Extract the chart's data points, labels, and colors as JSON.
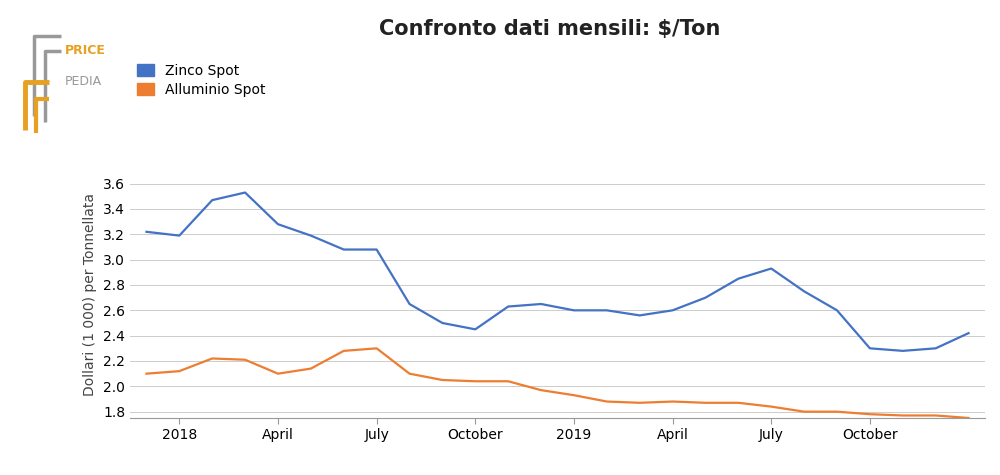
{
  "title": "Confronto dati mensili: $/Ton",
  "ylabel": "Dollari (1 000) per Tonnellata",
  "zinc_color": "#4472C4",
  "aluminium_color": "#ED7D31",
  "legend_labels": [
    "Zinco Spot",
    "Alluminio Spot"
  ],
  "ylim": [
    1.75,
    3.7
  ],
  "yticks": [
    1.8,
    2.0,
    2.2,
    2.4,
    2.6,
    2.8,
    3.0,
    3.2,
    3.4,
    3.6
  ],
  "zinc_data": [
    3.22,
    3.19,
    3.47,
    3.53,
    3.28,
    3.19,
    3.08,
    3.08,
    2.65,
    2.5,
    2.45,
    2.63,
    2.65,
    2.6,
    2.6,
    2.56,
    2.6,
    2.7,
    2.85,
    2.93,
    2.75,
    2.6,
    2.3,
    2.28,
    2.3,
    2.42
  ],
  "aluminium_data": [
    2.1,
    2.12,
    2.22,
    2.21,
    2.1,
    2.14,
    2.28,
    2.3,
    2.1,
    2.05,
    2.04,
    2.04,
    1.97,
    1.93,
    1.88,
    1.87,
    1.88,
    1.87,
    1.87,
    1.84,
    1.8,
    1.8,
    1.78,
    1.77,
    1.77,
    1.75
  ],
  "xtick_labels": [
    "2018",
    "April",
    "July",
    "October",
    "2019",
    "April",
    "July",
    "October"
  ],
  "xtick_positions": [
    1,
    4,
    7,
    10,
    13,
    16,
    19,
    22
  ],
  "background_color": "#FFFFFF",
  "grid_color": "#CCCCCC",
  "title_fontsize": 15,
  "label_fontsize": 10,
  "tick_fontsize": 10,
  "logo_color_orange": "#E8A020",
  "logo_color_gray": "#999999"
}
